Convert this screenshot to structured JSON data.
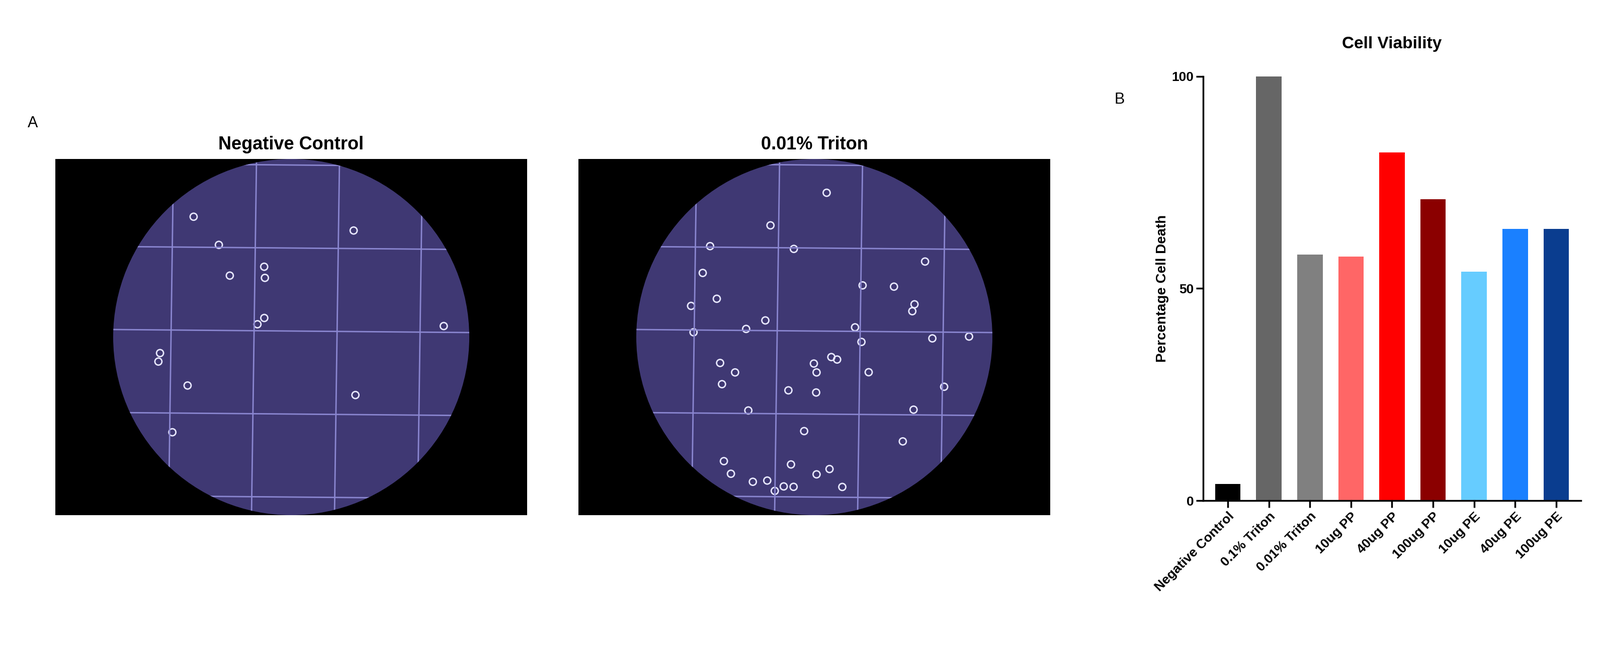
{
  "figure": {
    "panels": [
      {
        "label": "A",
        "images": [
          {
            "title": "Negative Control"
          },
          {
            "title": "0.01% Triton"
          }
        ]
      },
      {
        "label": "B"
      }
    ]
  },
  "chart_data": {
    "type": "bar",
    "title": "Cell Viability",
    "y_label": "Percentage Cell Death",
    "categories": [
      "Negative Control",
      "0.1% Triton",
      "0.01% Triton",
      "10ug PP",
      "40ug PP",
      "100ug PP",
      "10ug PE",
      "40ug PE",
      "100ug PE"
    ],
    "values": [
      4,
      100,
      58,
      57.5,
      82,
      71,
      54,
      64,
      64
    ],
    "colors": [
      "#000000",
      "#666666",
      "#808080",
      "#ff6666",
      "#ff0000",
      "#8b0000",
      "#66ccff",
      "#1a80ff",
      "#0a3d8f"
    ],
    "ylim": [
      0,
      100
    ],
    "yticks": [
      0,
      50,
      100
    ],
    "grid": false
  }
}
